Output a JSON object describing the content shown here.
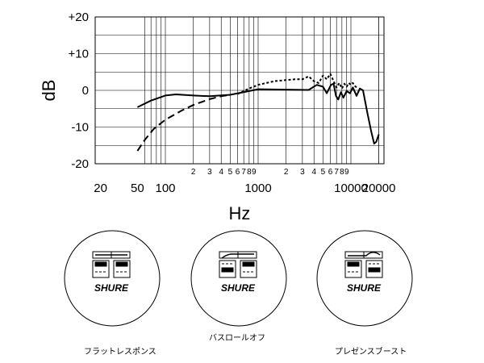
{
  "chart_data": {
    "type": "line",
    "xlabel": "Hz",
    "ylabel": "dB",
    "xscale": "log",
    "xlim": [
      50,
      20000
    ],
    "ylim": [
      -20,
      20
    ],
    "grid": true,
    "y_ticks": [
      {
        "value": 20,
        "label": "+20"
      },
      {
        "value": 10,
        "label": "+10"
      },
      {
        "value": 0,
        "label": "0"
      },
      {
        "value": -10,
        "label": "-10"
      },
      {
        "value": -20,
        "label": "-20"
      }
    ],
    "x_major_ticks": [
      {
        "value": 20,
        "label": "20"
      },
      {
        "value": 50,
        "label": "50"
      },
      {
        "value": 100,
        "label": "100"
      },
      {
        "value": 1000,
        "label": "1000"
      },
      {
        "value": 10000,
        "label": "10000"
      },
      {
        "value": 20000,
        "label": "20000"
      }
    ],
    "x_minor_ticks": [
      {
        "value": 200,
        "label": "2"
      },
      {
        "value": 300,
        "label": "3"
      },
      {
        "value": 400,
        "label": "4"
      },
      {
        "value": 500,
        "label": "5"
      },
      {
        "value": 600,
        "label": "6"
      },
      {
        "value": 700,
        "label": "7"
      },
      {
        "value": 800,
        "label": "8"
      },
      {
        "value": 900,
        "label": "9"
      },
      {
        "value": 2000,
        "label": "2"
      },
      {
        "value": 3000,
        "label": "3"
      },
      {
        "value": 4000,
        "label": "4"
      },
      {
        "value": 5000,
        "label": "5"
      },
      {
        "value": 6000,
        "label": "6"
      },
      {
        "value": 7000,
        "label": "7"
      },
      {
        "value": 8000,
        "label": "8"
      },
      {
        "value": 9000,
        "label": "9"
      }
    ],
    "series": [
      {
        "style": "solid",
        "points": [
          [
            50,
            -4.6
          ],
          [
            70,
            -2.8
          ],
          [
            100,
            -1.4
          ],
          [
            130,
            -1.1
          ],
          [
            200,
            -1.4
          ],
          [
            300,
            -1.6
          ],
          [
            500,
            -1.2
          ],
          [
            800,
            -0.2
          ],
          [
            1000,
            0.3
          ],
          [
            2000,
            0.2
          ],
          [
            3500,
            0.1
          ],
          [
            4300,
            1.5
          ],
          [
            5000,
            1.0
          ],
          [
            5500,
            -0.8
          ],
          [
            6100,
            1.5
          ],
          [
            6500,
            1.8
          ],
          [
            6900,
            -1.5
          ],
          [
            7300,
            -2.5
          ],
          [
            7800,
            -0.5
          ],
          [
            8300,
            -2.0
          ],
          [
            9000,
            -0.2
          ],
          [
            9800,
            -0.8
          ],
          [
            10500,
            0.8
          ],
          [
            11500,
            -1.5
          ],
          [
            12500,
            0.5
          ],
          [
            13500,
            0.0
          ],
          [
            15000,
            -6.0
          ],
          [
            16500,
            -11.0
          ],
          [
            17800,
            -14.5
          ],
          [
            18800,
            -14.0
          ],
          [
            20000,
            -12.0
          ]
        ]
      },
      {
        "style": "dashed",
        "points": [
          [
            50,
            -16.5
          ],
          [
            60,
            -13.5
          ],
          [
            75,
            -10.5
          ],
          [
            100,
            -8.0
          ],
          [
            150,
            -5.5
          ],
          [
            200,
            -4.0
          ],
          [
            300,
            -2.4
          ],
          [
            400,
            -1.6
          ],
          [
            500,
            -1.2
          ]
        ]
      },
      {
        "style": "dotted",
        "points": [
          [
            600,
            -1.0
          ],
          [
            800,
            0.5
          ],
          [
            1000,
            1.5
          ],
          [
            1500,
            2.5
          ],
          [
            2000,
            2.8
          ],
          [
            2500,
            3.0
          ],
          [
            3000,
            3.0
          ],
          [
            3500,
            3.8
          ],
          [
            4000,
            2.5
          ],
          [
            4500,
            2.0
          ],
          [
            5000,
            4.0
          ],
          [
            5500,
            3.0
          ],
          [
            6000,
            4.5
          ],
          [
            6500,
            2.5
          ],
          [
            7000,
            0.8
          ],
          [
            7500,
            2.0
          ],
          [
            8000,
            0.5
          ],
          [
            8500,
            1.8
          ],
          [
            9000,
            1.0
          ],
          [
            9500,
            2.0
          ],
          [
            10000,
            1.5
          ],
          [
            10500,
            2.0
          ],
          [
            11000,
            1.2
          ],
          [
            11500,
            0.8
          ]
        ]
      }
    ]
  },
  "switch_modes": [
    {
      "caption": "フラットレスポンス",
      "brand": "SHURE",
      "mode": "flat"
    },
    {
      "caption": "バスロールオフ",
      "brand": "SHURE",
      "mode": "bass-rolloff"
    },
    {
      "caption": "プレゼンスブースト",
      "brand": "SHURE",
      "mode": "presence-boost"
    }
  ]
}
